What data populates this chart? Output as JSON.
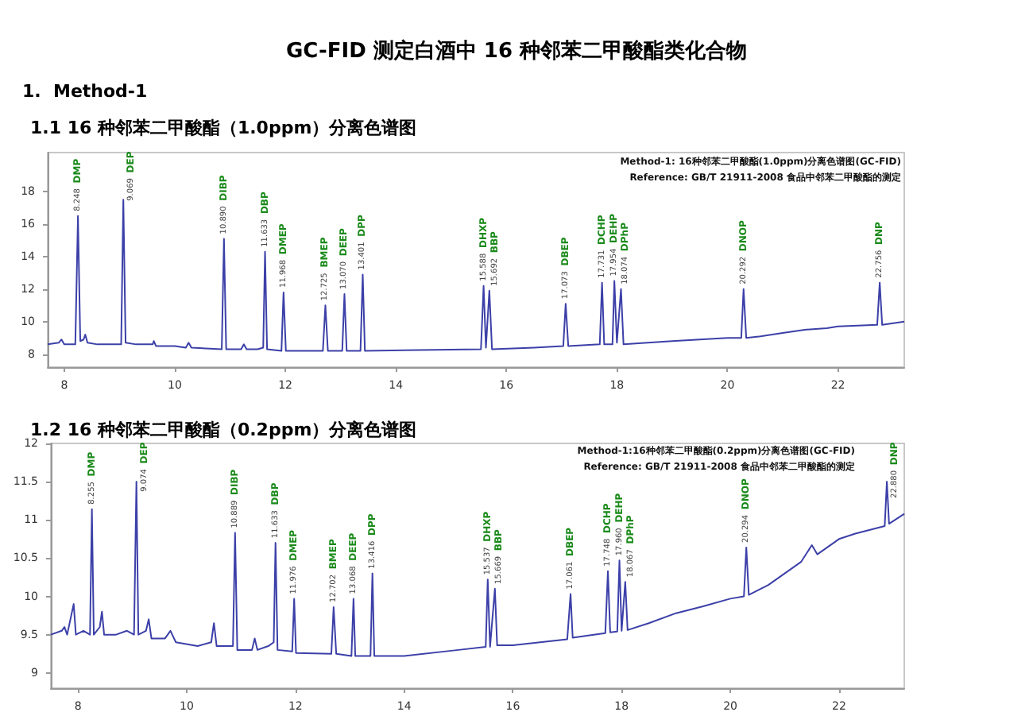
{
  "chart_data": [
    {
      "type": "line",
      "title": "1.1 16 种邻苯二甲酸酯（1.0ppm）分离色谱图",
      "annotations": [
        "GC-FID 测定白酒中 16 种邻苯二甲酸酯类化合物",
        "1.  Method-1",
        "Method-1: 16种邻苯二甲酸酯(1.0ppm)分离色谱图(GC-FID)",
        "Reference: GB/T 21911-2008 食品中邻苯二甲酸酯的测定",
        {
          "text": "8.248 DMP",
          "x": 8.248,
          "y": 16.5
        },
        {
          "text": "9.069 DEP",
          "x": 9.069,
          "y": 17.5
        },
        {
          "text": "10.890 DIBP",
          "x": 10.89,
          "y": 15.1
        },
        {
          "text": "11.633 DBP",
          "x": 11.633,
          "y": 14.3
        },
        {
          "text": "11.968 DMEP",
          "x": 11.968,
          "y": 11.8
        },
        {
          "text": "12.725 BMEP",
          "x": 12.725,
          "y": 11.0
        },
        {
          "text": "13.070 DEEP",
          "x": 13.07,
          "y": 11.7
        },
        {
          "text": "13.401 DPP",
          "x": 13.401,
          "y": 12.9
        },
        {
          "text": "15.588 DHXP",
          "x": 15.588,
          "y": 12.2
        },
        {
          "text": "15.692 BBP",
          "x": 15.692,
          "y": 11.9
        },
        {
          "text": "17.073 DBEP",
          "x": 17.073,
          "y": 11.1
        },
        {
          "text": "17.731 DCHP",
          "x": 17.731,
          "y": 12.4
        },
        {
          "text": "17.954 DEHP",
          "x": 17.954,
          "y": 12.5
        },
        {
          "text": "18.074 DPhP",
          "x": 18.074,
          "y": 12.0
        },
        {
          "text": "20.292 DNOP",
          "x": 20.292,
          "y": 12.0
        },
        {
          "text": "22.756 DNP",
          "x": 22.756,
          "y": 12.4
        }
      ],
      "xlim": [
        7.7,
        23.2
      ],
      "xticks": [
        8,
        10,
        12,
        14,
        16,
        18,
        20,
        22
      ],
      "ylim": [
        7.2,
        20.4
      ],
      "yticks": [
        8,
        10,
        12,
        14,
        16,
        18
      ],
      "grid": false,
      "marker": "none",
      "series": [
        {
          "color": "#3c40a8",
          "x": [
            7.7,
            7.9,
            7.95,
            8.0,
            8.2,
            8.248,
            8.29,
            8.35,
            8.38,
            8.42,
            8.6,
            8.8,
            9.03,
            9.069,
            9.11,
            9.3,
            9.6,
            9.62,
            9.66,
            10.0,
            10.2,
            10.25,
            10.3,
            10.85,
            10.89,
            10.93,
            11.2,
            11.25,
            11.3,
            11.5,
            11.6,
            11.633,
            11.67,
            11.93,
            11.968,
            12.01,
            12.68,
            12.725,
            12.77,
            13.03,
            13.07,
            13.11,
            13.36,
            13.401,
            13.44,
            15.54,
            15.588,
            15.63,
            15.692,
            15.74,
            16.5,
            17.03,
            17.073,
            17.12,
            17.69,
            17.731,
            17.77,
            17.92,
            17.954,
            18.0,
            18.074,
            18.12,
            19.0,
            20.0,
            20.25,
            20.292,
            20.34,
            20.6,
            21.0,
            21.4,
            21.8,
            22.0,
            22.71,
            22.756,
            22.8,
            23.2
          ],
          "values": [
            8.6,
            8.7,
            8.9,
            8.6,
            8.6,
            16.5,
            8.8,
            8.9,
            9.2,
            8.7,
            8.6,
            8.6,
            8.6,
            17.5,
            8.7,
            8.6,
            8.6,
            8.8,
            8.5,
            8.5,
            8.4,
            8.7,
            8.4,
            8.3,
            15.1,
            8.3,
            8.3,
            8.6,
            8.3,
            8.3,
            8.4,
            14.3,
            8.3,
            8.2,
            11.8,
            8.2,
            8.2,
            11.0,
            8.2,
            8.2,
            11.7,
            8.2,
            8.2,
            12.9,
            8.2,
            8.3,
            12.2,
            8.4,
            11.9,
            8.3,
            8.4,
            8.5,
            11.1,
            8.5,
            8.6,
            12.4,
            8.6,
            8.6,
            12.5,
            8.7,
            12.0,
            8.6,
            8.8,
            9.0,
            9.0,
            12.0,
            9.0,
            9.1,
            9.3,
            9.5,
            9.6,
            9.7,
            9.8,
            12.4,
            9.8,
            10.0
          ]
        }
      ]
    },
    {
      "type": "line",
      "title": "1.2 16 种邻苯二甲酸酯（0.2ppm）分离色谱图",
      "annotations": [
        "Method-1:16种邻苯二甲酸酯(0.2ppm)分离色谱图(GC-FID)",
        "Reference: GB/T 21911-2008 食品中邻苯二甲酸酯的测定",
        {
          "text": "8.255 DMP",
          "x": 8.255,
          "y": 11.14
        },
        {
          "text": "9.074 DEP",
          "x": 9.074,
          "y": 11.5
        },
        {
          "text": "10.889 DIBP",
          "x": 10.889,
          "y": 10.83
        },
        {
          "text": "11.633 DBP",
          "x": 11.633,
          "y": 10.7
        },
        {
          "text": "11.976 DMEP",
          "x": 11.976,
          "y": 9.97
        },
        {
          "text": "12.702 BMEP",
          "x": 12.702,
          "y": 9.86
        },
        {
          "text": "13.068 DEEP",
          "x": 13.068,
          "y": 9.97
        },
        {
          "text": "13.416 DPP",
          "x": 13.416,
          "y": 10.3
        },
        {
          "text": "15.537 DHXP",
          "x": 15.537,
          "y": 10.22
        },
        {
          "text": "15.669 BBP",
          "x": 15.669,
          "y": 10.1
        },
        {
          "text": "17.061 DBEP",
          "x": 17.061,
          "y": 10.03
        },
        {
          "text": "17.748 DCHP",
          "x": 17.748,
          "y": 10.33
        },
        {
          "text": "17.960 DEHP",
          "x": 17.96,
          "y": 10.47
        },
        {
          "text": "18.067 DPhP",
          "x": 18.067,
          "y": 10.19
        },
        {
          "text": "20.294 DNOP",
          "x": 20.294,
          "y": 10.64
        },
        {
          "text": "22.880 DNP",
          "x": 22.88,
          "y": 11.5
        }
      ],
      "xlim": [
        7.5,
        23.2
      ],
      "xticks": [
        8,
        10,
        12,
        14,
        16,
        18,
        20,
        22
      ],
      "ylim": [
        8.8,
        12
      ],
      "yticks": [
        9,
        9.5,
        10,
        10.5,
        11,
        11.5,
        12
      ],
      "grid": false,
      "marker": "none",
      "series": [
        {
          "color": "#3c40a8",
          "x": [
            7.5,
            7.7,
            7.75,
            7.8,
            7.92,
            7.96,
            8.1,
            8.22,
            8.255,
            8.29,
            8.4,
            8.44,
            8.48,
            8.7,
            8.9,
            9.03,
            9.074,
            9.11,
            9.25,
            9.3,
            9.35,
            9.6,
            9.7,
            9.8,
            10.2,
            10.45,
            10.5,
            10.55,
            10.85,
            10.889,
            10.93,
            11.2,
            11.25,
            11.3,
            11.5,
            11.6,
            11.633,
            11.67,
            11.94,
            11.976,
            12.01,
            12.66,
            12.702,
            12.75,
            13.03,
            13.068,
            13.1,
            13.38,
            13.416,
            13.45,
            14.0,
            15.0,
            15.5,
            15.537,
            15.58,
            15.669,
            15.71,
            16.0,
            16.5,
            17.0,
            17.061,
            17.1,
            17.7,
            17.748,
            17.79,
            17.92,
            17.96,
            18.0,
            18.067,
            18.11,
            18.5,
            19.0,
            19.5,
            20.0,
            20.25,
            20.294,
            20.34,
            20.7,
            21.0,
            21.3,
            21.5,
            21.6,
            22.0,
            22.3,
            22.84,
            22.88,
            22.92,
            23.2
          ],
          "values": [
            9.5,
            9.55,
            9.6,
            9.5,
            9.9,
            9.5,
            9.55,
            9.5,
            11.14,
            9.5,
            9.6,
            9.8,
            9.5,
            9.5,
            9.55,
            9.5,
            11.5,
            9.5,
            9.55,
            9.7,
            9.45,
            9.45,
            9.55,
            9.4,
            9.35,
            9.4,
            9.65,
            9.35,
            9.35,
            10.83,
            9.3,
            9.3,
            9.45,
            9.3,
            9.35,
            9.4,
            10.7,
            9.3,
            9.28,
            9.97,
            9.26,
            9.25,
            9.86,
            9.25,
            9.22,
            9.97,
            9.22,
            9.22,
            10.3,
            9.22,
            9.22,
            9.3,
            9.34,
            10.22,
            9.34,
            10.1,
            9.36,
            9.36,
            9.4,
            9.44,
            10.03,
            9.46,
            9.52,
            10.33,
            9.53,
            9.54,
            10.47,
            9.55,
            10.19,
            9.56,
            9.65,
            9.78,
            9.87,
            9.97,
            10.0,
            10.64,
            10.02,
            10.15,
            10.3,
            10.45,
            10.67,
            10.55,
            10.75,
            10.82,
            10.92,
            11.5,
            10.95,
            11.08
          ]
        }
      ]
    }
  ]
}
